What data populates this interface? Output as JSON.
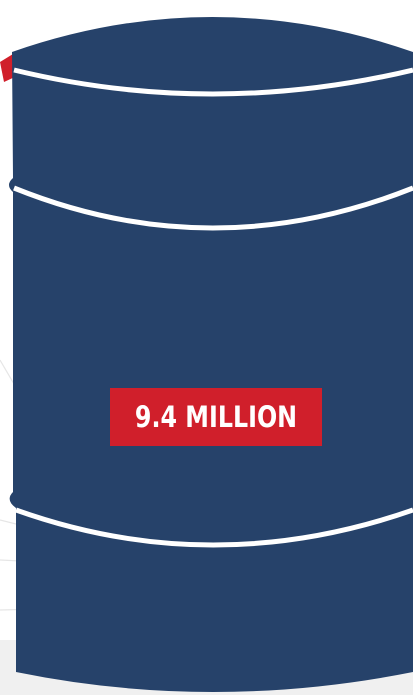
{
  "barrel": {
    "label": "9.4 MILLION"
  },
  "colors": {
    "barrel_fill": "#26426a",
    "barrel_bands": "#ffffff",
    "label_background": "#d01f2b",
    "label_text": "#ffffff",
    "accent_arrow": "#d01f2b",
    "background_lines": "#e4e4e4"
  }
}
